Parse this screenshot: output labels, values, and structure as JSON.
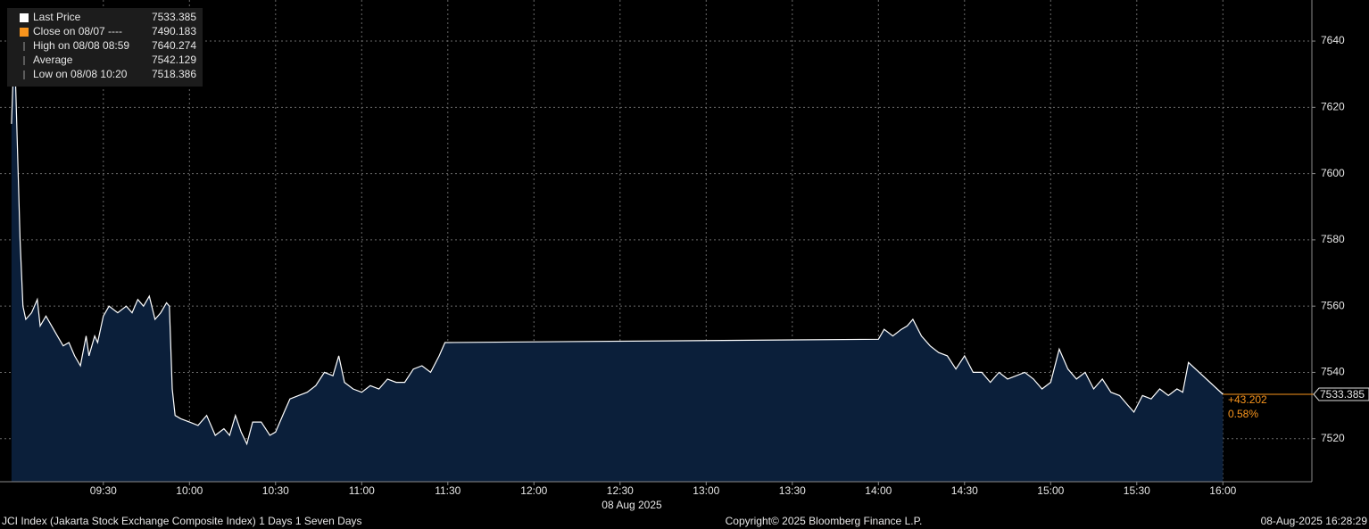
{
  "chart_data": {
    "type": "area",
    "x": [
      "08:58",
      "08:59",
      "09:00",
      "09:01",
      "09:02",
      "09:03",
      "09:05",
      "09:07",
      "09:08",
      "09:10",
      "09:12",
      "09:14",
      "09:16",
      "09:18",
      "09:20",
      "09:22",
      "09:24",
      "09:25",
      "09:27",
      "09:28",
      "09:30",
      "09:32",
      "09:35",
      "09:38",
      "09:40",
      "09:42",
      "09:44",
      "09:46",
      "09:48",
      "09:50",
      "09:52",
      "09:53",
      "09:54",
      "09:55",
      "09:57",
      "10:00",
      "10:03",
      "10:06",
      "10:09",
      "10:12",
      "10:14",
      "10:16",
      "10:18",
      "10:20",
      "10:22",
      "10:25",
      "10:28",
      "10:30",
      "10:33",
      "10:35",
      "10:38",
      "10:41",
      "10:44",
      "10:47",
      "10:50",
      "10:52",
      "10:54",
      "10:57",
      "11:00",
      "11:03",
      "11:06",
      "11:09",
      "11:12",
      "11:15",
      "11:18",
      "11:21",
      "11:24",
      "11:27",
      "11:29",
      "14:00",
      "14:02",
      "14:05",
      "14:08",
      "14:10",
      "14:12",
      "14:15",
      "14:18",
      "14:21",
      "14:24",
      "14:27",
      "14:30",
      "14:33",
      "14:36",
      "14:39",
      "14:42",
      "14:45",
      "14:48",
      "14:51",
      "14:54",
      "14:57",
      "15:00",
      "15:03",
      "15:06",
      "15:09",
      "15:12",
      "15:15",
      "15:18",
      "15:21",
      "15:24",
      "15:27",
      "15:29",
      "15:32",
      "15:35",
      "15:38",
      "15:41",
      "15:44",
      "15:46",
      "15:48",
      "16:00"
    ],
    "series": [
      {
        "name": "Last Price",
        "color": "#ffffff",
        "fill": "#0b1f3a",
        "values": [
          7615,
          7640.274,
          7610,
          7580,
          7560,
          7556,
          7558,
          7562,
          7554,
          7557,
          7554,
          7551,
          7548,
          7549,
          7545,
          7542,
          7551,
          7545,
          7551,
          7549,
          7557,
          7560,
          7558,
          7560,
          7558,
          7562,
          7560,
          7563,
          7556,
          7558,
          7561,
          7560,
          7535,
          7527,
          7526,
          7525,
          7524,
          7527,
          7521,
          7523,
          7521,
          7527,
          7522,
          7518.386,
          7525,
          7525,
          7521,
          7522,
          7528,
          7532,
          7533,
          7534,
          7536,
          7540,
          7539,
          7545,
          7537,
          7535,
          7534,
          7536,
          7535,
          7538,
          7537,
          7537,
          7541,
          7542,
          7540,
          7545,
          7549,
          7550,
          7553,
          7551,
          7553,
          7554,
          7556,
          7551,
          7548,
          7546,
          7545,
          7541,
          7545,
          7540,
          7540,
          7537,
          7540,
          7538,
          7539,
          7540,
          7538,
          7535,
          7537,
          7547,
          7541,
          7538,
          7540,
          7535,
          7538,
          7534,
          7533,
          7530,
          7528,
          7533,
          7532,
          7535,
          7533,
          7535,
          7534,
          7543,
          7533.385
        ]
      }
    ],
    "xlim": [
      "08:54",
      "16:31"
    ],
    "xticks": [
      "09:30",
      "10:00",
      "10:30",
      "11:00",
      "11:30",
      "12:00",
      "12:30",
      "13:00",
      "13:30",
      "14:00",
      "14:30",
      "15:00",
      "15:30",
      "16:00"
    ],
    "x_sublabel": "08 Aug 2025",
    "ylim": [
      7507,
      7652.4
    ],
    "yticks": [
      7520,
      7540,
      7560,
      7580,
      7600,
      7620,
      7640
    ],
    "grid": true,
    "legend": [
      {
        "label": "Last Price",
        "value": 7533.385,
        "color": "#ffffff"
      },
      {
        "label": "Close on 08/07 ----",
        "value": 7490.183,
        "color": "#f7941d"
      },
      {
        "label": "High on 08/08 08:59",
        "value": 7640.274,
        "color": "#9a9a9a"
      },
      {
        "label": "Average",
        "value": 7542.129,
        "color": "#9a9a9a"
      },
      {
        "label": "Low on 08/08 10:20",
        "value": 7518.386,
        "color": "#9a9a9a"
      }
    ],
    "change": "+43.202",
    "change_pct": "0.58%",
    "footer_left": "JCI Index (Jakarta Stock Exchange Composite Index) 1 Days 1 Seven Days",
    "footer_center": "Copyright© 2025 Bloomberg Finance L.P.",
    "footer_right": "08-Aug-2025 16:28:29"
  }
}
